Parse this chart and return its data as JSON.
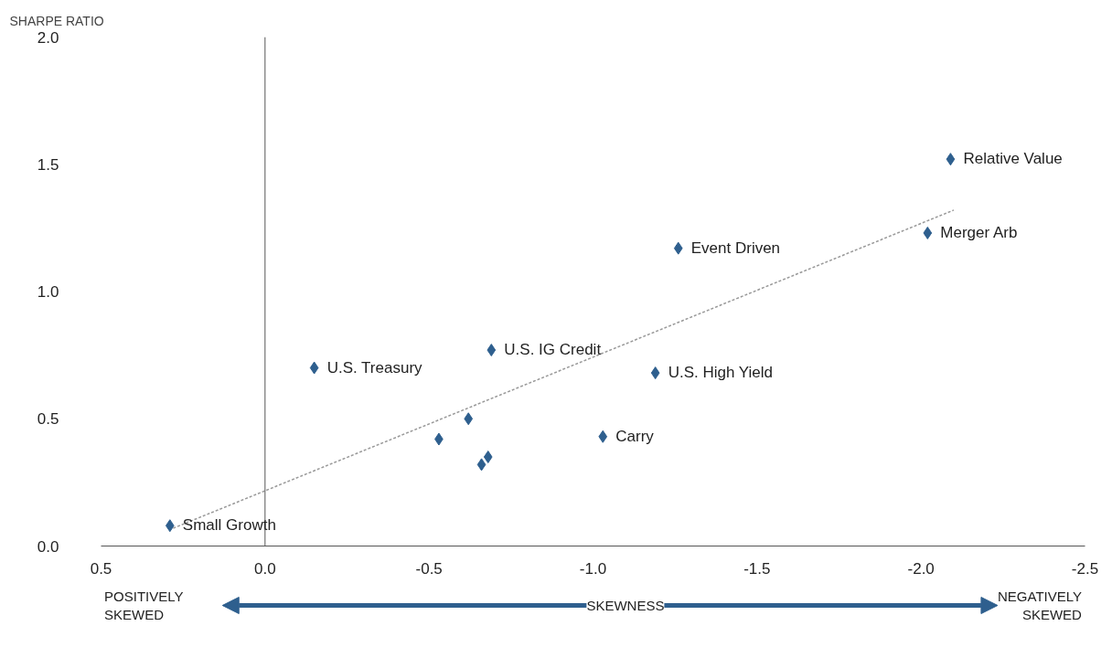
{
  "chart_data": {
    "type": "scatter",
    "ylabel": "SHARPE RATIO",
    "xlabel": "SKEWNESS",
    "xlim": [
      0.5,
      -2.5
    ],
    "ylim": [
      0,
      2.0
    ],
    "xticks": [
      {
        "value": 0.5,
        "label": "0.5"
      },
      {
        "value": 0,
        "label": "0.0"
      },
      {
        "value": -0.5,
        "label": "-0.5"
      },
      {
        "value": -1,
        "label": "-1.0"
      },
      {
        "value": -1.5,
        "label": "-1.5"
      },
      {
        "value": -2,
        "label": "-2.0"
      },
      {
        "value": -2.5,
        "label": "-2.5"
      }
    ],
    "yticks": [
      {
        "value": 0,
        "label": "0.0"
      },
      {
        "value": 0.5,
        "label": "0.5"
      },
      {
        "value": 1,
        "label": "1.0"
      },
      {
        "value": 1.5,
        "label": "1.5"
      },
      {
        "value": 2,
        "label": "2.0"
      }
    ],
    "grid": false,
    "series": [
      {
        "marker": "diamond",
        "color": "#2e5f8e",
        "x": [
          0.29,
          -0.15,
          -0.53,
          -0.62,
          -0.66,
          -0.68,
          -0.69,
          -1.03,
          -1.19,
          -1.26,
          -2.02,
          -2.09
        ],
        "values": [
          0.08,
          0.7,
          0.42,
          0.5,
          0.32,
          0.35,
          0.77,
          0.43,
          0.68,
          1.17,
          1.23,
          1.52
        ]
      },
      {
        "type": "line",
        "color": "#999999",
        "line_style": "dashed",
        "x": [
          0.28,
          -2.1
        ],
        "values": [
          0.07,
          1.32
        ]
      }
    ],
    "ref_lines": [
      {
        "axis": "x",
        "value": 0,
        "color": "#555555"
      }
    ],
    "annotations": [
      {
        "text": "Small Growth",
        "x": 0.29,
        "y": 0.08
      },
      {
        "text": "U.S. Treasury",
        "x": -0.15,
        "y": 0.7
      },
      {
        "text": "U.S. IG Credit",
        "x": -0.69,
        "y": 0.77
      },
      {
        "text": "Carry",
        "x": -1.03,
        "y": 0.43
      },
      {
        "text": "U.S. High Yield",
        "x": -1.19,
        "y": 0.68
      },
      {
        "text": "Event Driven",
        "x": -1.26,
        "y": 1.17
      },
      {
        "text": "Merger Arb",
        "x": -2.02,
        "y": 1.23
      },
      {
        "text": "Relative Value",
        "x": -2.09,
        "y": 1.52
      },
      "POSITIVELY\nSKEWED",
      "NEGATIVELY\nSKEWED"
    ]
  }
}
